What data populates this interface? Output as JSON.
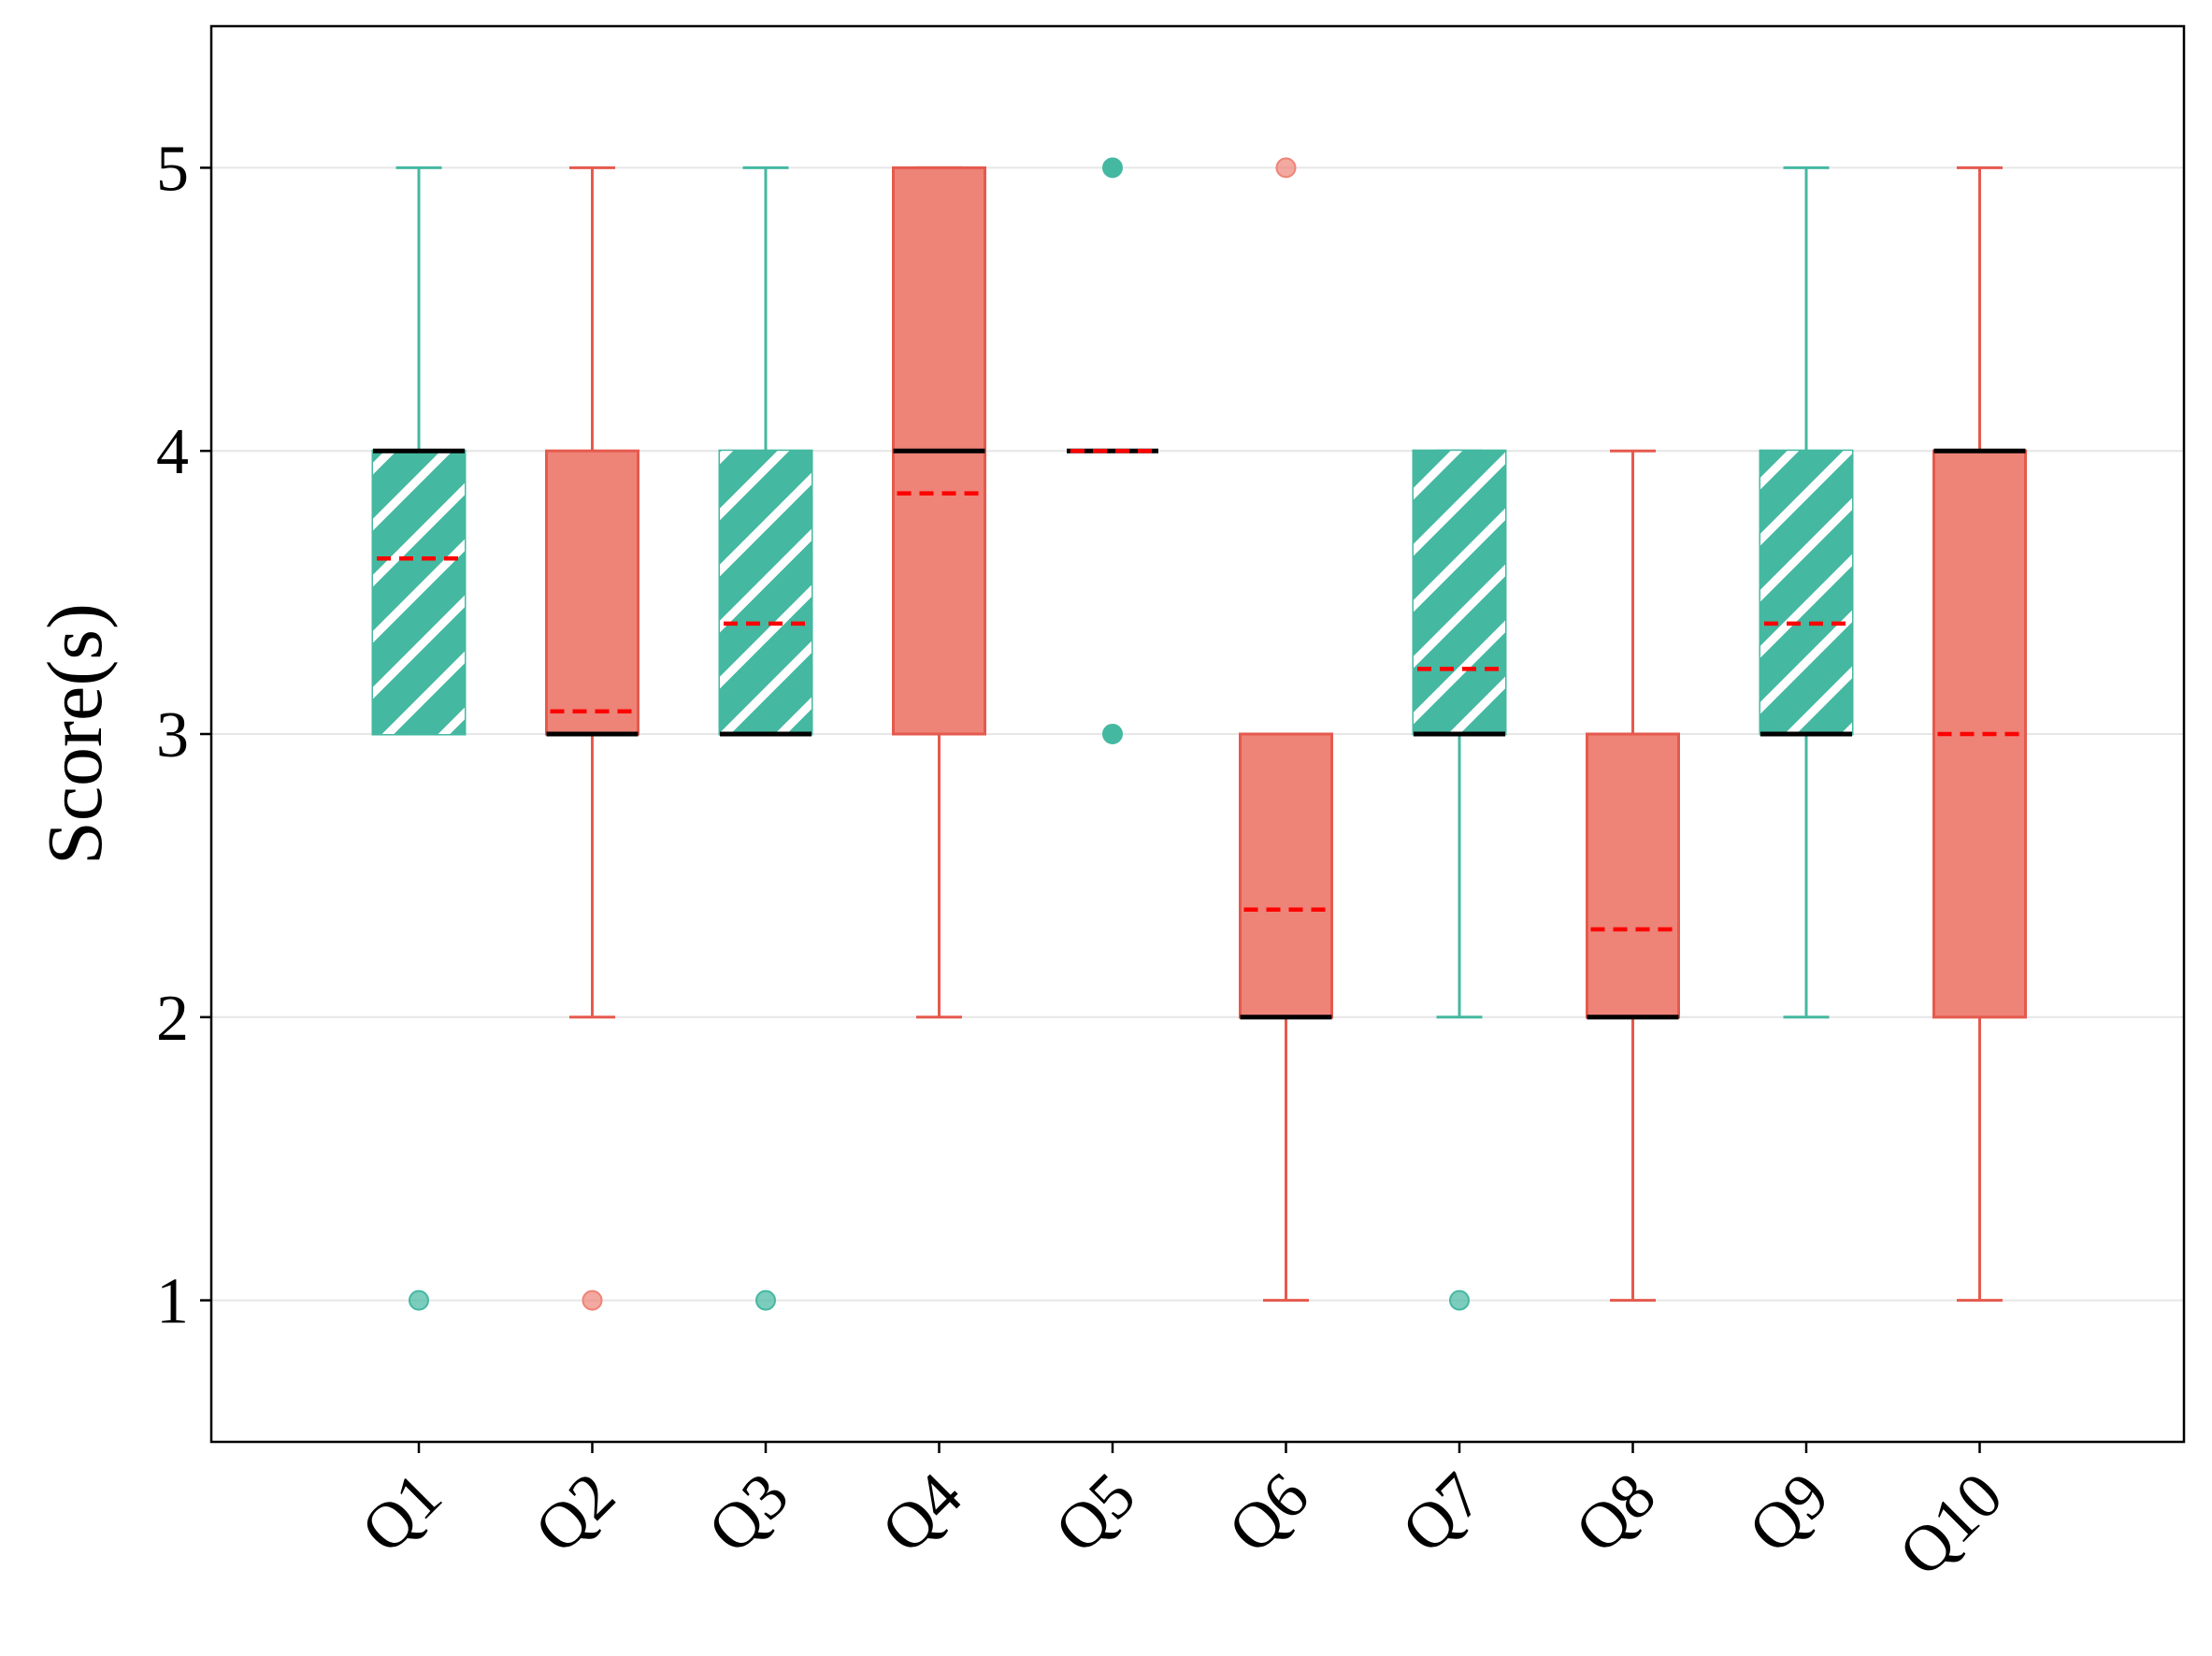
{
  "chart_data": {
    "type": "box",
    "title": "",
    "xlabel": "",
    "ylabel": "Score(s)",
    "ylim": [
      0.5,
      5.5
    ],
    "yticks": [
      1,
      2,
      3,
      4,
      5
    ],
    "grid": "horizontal",
    "legend": "none",
    "colors": {
      "group_a": "#45b8a1",
      "group_b": "#ee8377",
      "median": "#000000",
      "mean": "#ff0000",
      "grid": "#e6e6e6"
    },
    "categories": [
      "Q1",
      "Q2",
      "Q3",
      "Q4",
      "Q5",
      "Q6",
      "Q7",
      "Q8",
      "Q9",
      "Q10"
    ],
    "boxes": [
      {
        "label": "Q1",
        "group": "a",
        "hatch": true,
        "whislo": 3,
        "q1": 3,
        "median": 4,
        "q3": 4,
        "whishi": 5,
        "mean": 3.62,
        "fliers": [
          1
        ]
      },
      {
        "label": "Q2",
        "group": "b",
        "hatch": false,
        "whislo": 2,
        "q1": 3,
        "median": 3,
        "q3": 4,
        "whishi": 5,
        "mean": 3.08,
        "fliers": [
          1
        ]
      },
      {
        "label": "Q3",
        "group": "a",
        "hatch": true,
        "whislo": 3,
        "q1": 3,
        "median": 3,
        "q3": 4,
        "whishi": 5,
        "mean": 3.39,
        "fliers": [
          1
        ]
      },
      {
        "label": "Q4",
        "group": "b",
        "hatch": false,
        "whislo": 2,
        "q1": 3,
        "median": 4,
        "q3": 5,
        "whishi": 5,
        "mean": 3.85,
        "fliers": []
      },
      {
        "label": "Q5",
        "group": "a",
        "hatch": true,
        "whislo": 4,
        "q1": 4,
        "median": 4,
        "q3": 4,
        "whishi": 4,
        "mean": 4.0,
        "fliers": [
          3,
          5
        ]
      },
      {
        "label": "Q6",
        "group": "b",
        "hatch": false,
        "whislo": 1,
        "q1": 2,
        "median": 2,
        "q3": 3,
        "whishi": 3,
        "mean": 2.38,
        "fliers": [
          5
        ]
      },
      {
        "label": "Q7",
        "group": "a",
        "hatch": true,
        "whislo": 2,
        "q1": 3,
        "median": 3,
        "q3": 4,
        "whishi": 4,
        "mean": 3.23,
        "fliers": [
          1
        ]
      },
      {
        "label": "Q8",
        "group": "b",
        "hatch": false,
        "whislo": 1,
        "q1": 2,
        "median": 2,
        "q3": 3,
        "whishi": 4,
        "mean": 2.31,
        "fliers": []
      },
      {
        "label": "Q9",
        "group": "a",
        "hatch": true,
        "whislo": 2,
        "q1": 3,
        "median": 3,
        "q3": 4,
        "whishi": 5,
        "mean": 3.39,
        "fliers": []
      },
      {
        "label": "Q10",
        "group": "b",
        "hatch": false,
        "whislo": 1,
        "q1": 2,
        "median": 4,
        "q3": 4,
        "whishi": 5,
        "mean": 3.0,
        "fliers": []
      }
    ]
  }
}
